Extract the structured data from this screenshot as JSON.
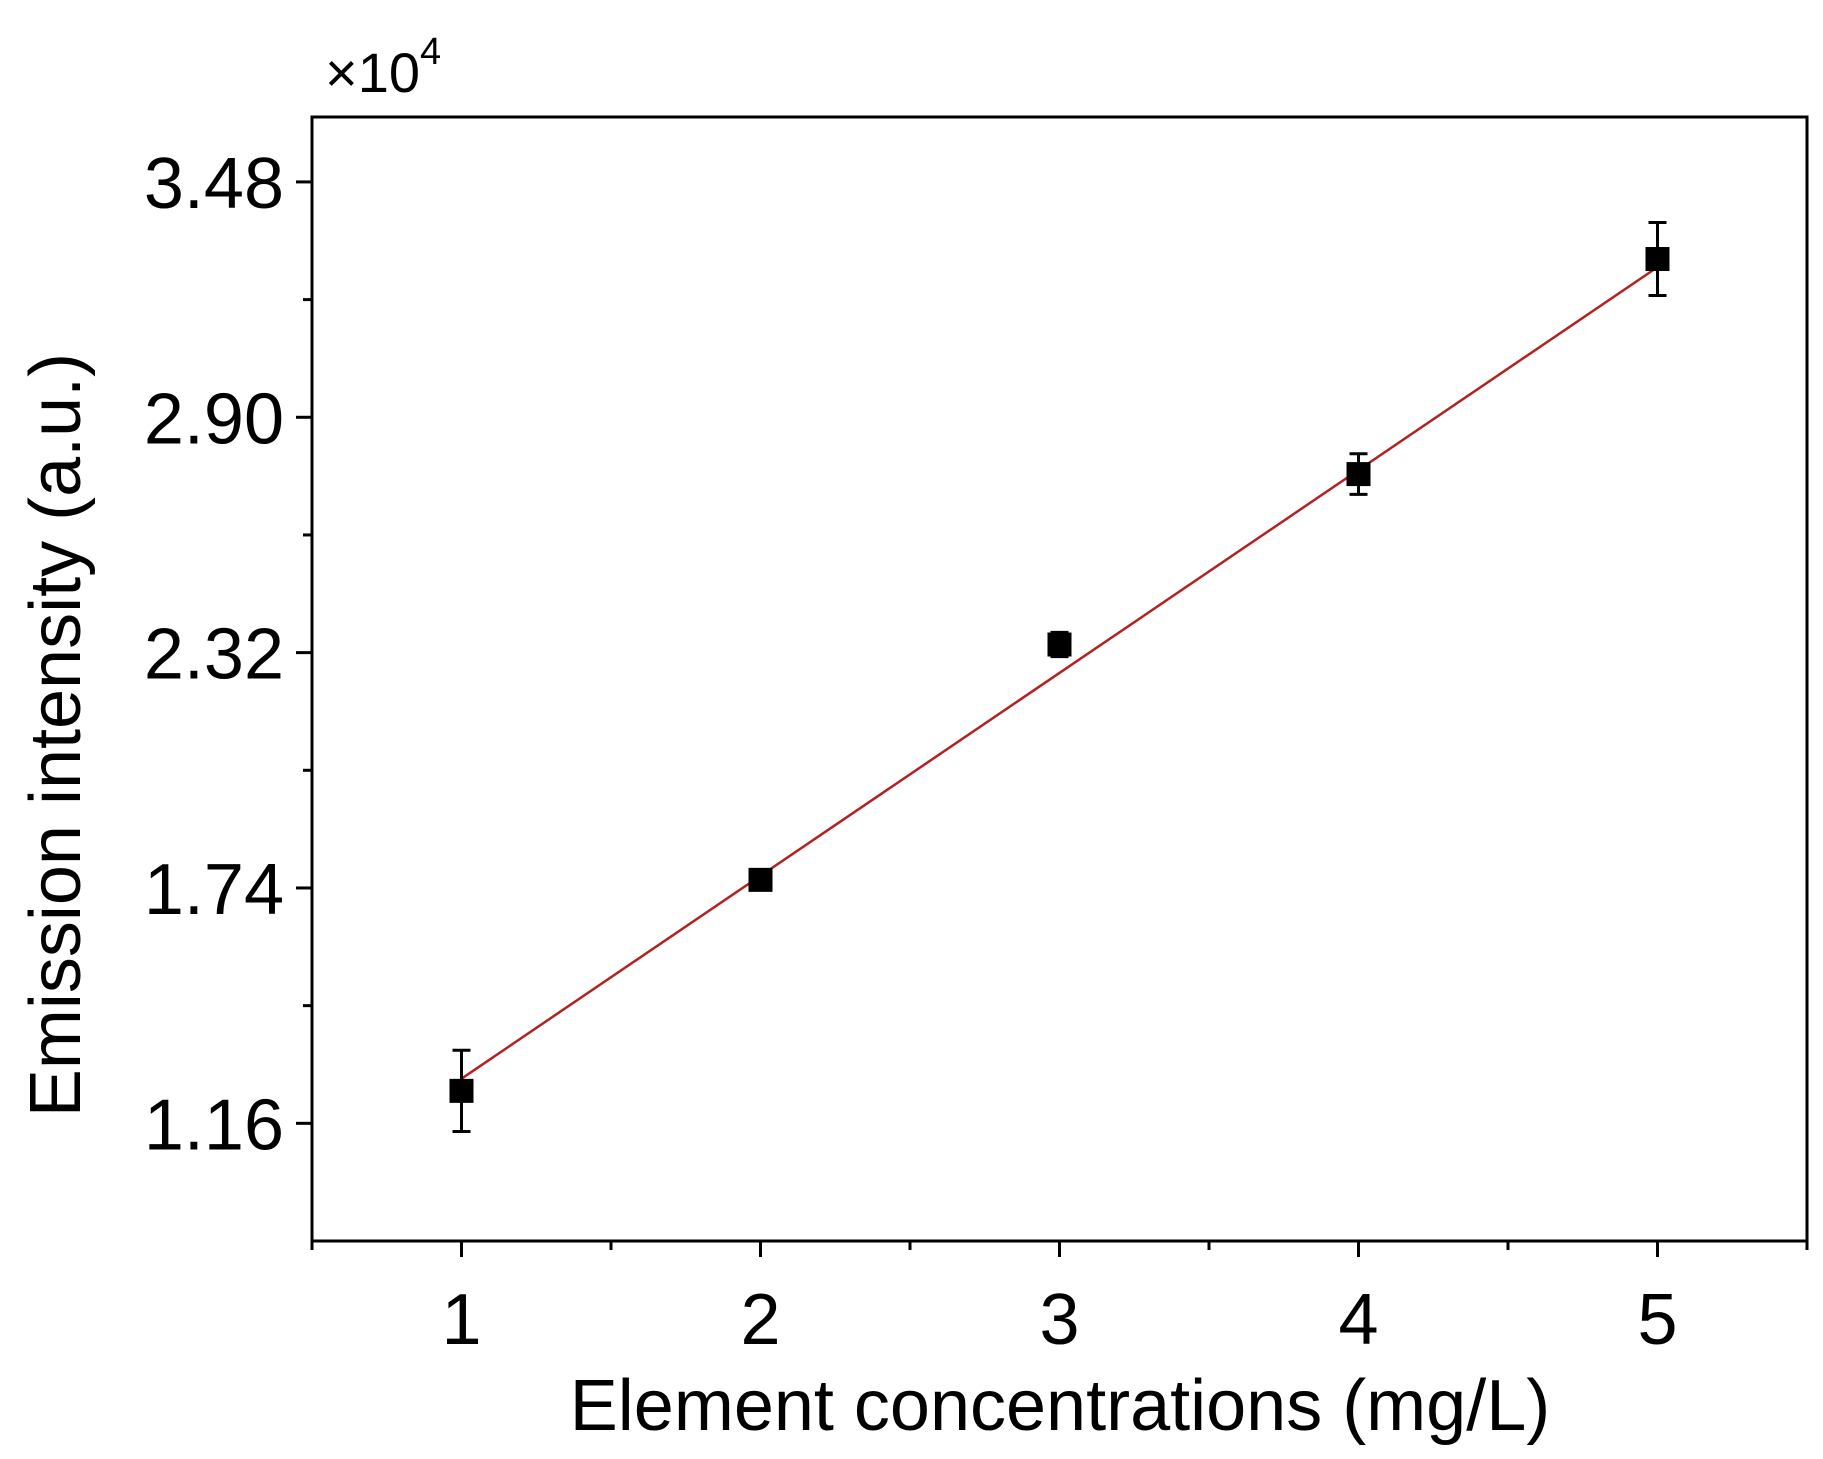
{
  "chart_data": {
    "type": "scatter",
    "xlabel": "Element concentrations (mg/L)",
    "ylabel": "Emission intensity (a.u.)",
    "y_multiplier": "×10",
    "y_multiplier_exponent": "4",
    "xlim": [
      0.5,
      5.5
    ],
    "ylim": [
      0.87,
      3.64
    ],
    "x_ticks": [
      1,
      2,
      3,
      4,
      5
    ],
    "x_tick_labels": [
      "1",
      "2",
      "3",
      "4",
      "5"
    ],
    "y_ticks": [
      1.16,
      1.74,
      2.32,
      2.9,
      3.48
    ],
    "y_tick_labels": [
      "1.16",
      "1.74",
      "2.32",
      "2.90",
      "3.48"
    ],
    "grid": false,
    "series": [
      {
        "x": [
          1,
          2,
          3,
          4,
          5
        ],
        "y": [
          1.24,
          1.76,
          2.34,
          2.76,
          3.29
        ],
        "error": [
          0.1,
          0.02,
          0.03,
          0.05,
          0.09
        ],
        "marker": "square",
        "color": "#000000"
      }
    ],
    "fit_line": {
      "x": [
        1,
        5
      ],
      "y": [
        1.27,
        3.27
      ],
      "color": "#b22222"
    }
  }
}
